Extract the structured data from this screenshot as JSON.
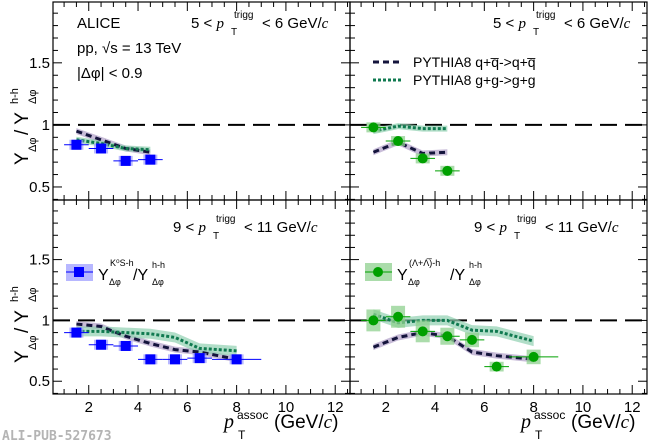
{
  "watermark": "ALI-PUB-527673",
  "colors": {
    "k0": "#0000ff",
    "k0_band": "#9999ff",
    "lambda": "#00a000",
    "lambda_band": "#8fd08f",
    "qq_line": "#14143c",
    "qq_band": "#b0a0c8",
    "gg_line": "#107a50",
    "gg_band": "#90d0b0"
  },
  "chart_data": [
    {
      "type": "scatter",
      "panel": "top-left",
      "title": "",
      "annotations": [
        "ALICE",
        "pp, √s = 13 TeV",
        "|Δφ| < 0.9"
      ],
      "trigger_label": {
        "pre": "5 < ",
        "p": "p",
        "sup": "trigg",
        "sub": "T",
        "post": " < 6 GeV/",
        "c": "c"
      },
      "ylabel": {
        "main": "Y",
        "sub1": "Δφ",
        "slash": " / Y",
        "sup2": "h-h",
        "sub2": "Δφ"
      },
      "xlim": [
        0.55,
        12.6
      ],
      "ylim": [
        0.395,
        2.0
      ],
      "yticks": [
        0.5,
        1,
        1.5
      ],
      "ytick_labels": [
        "0.5",
        "1",
        "1.5"
      ],
      "reference_line": 1,
      "series": [
        {
          "name": "K0S-h / h-h",
          "marker": "square",
          "color": "#0000ff",
          "x": [
            1.5,
            2.5,
            3.5,
            4.5
          ],
          "y": [
            0.84,
            0.81,
            0.71,
            0.72
          ],
          "xerr": [
            0.5,
            0.5,
            0.5,
            0.5
          ]
        },
        {
          "name": "PYTHIA8 q+qbar->q+qbar",
          "style": "dashed",
          "x": [
            1.5,
            2.5,
            3.5,
            4.5
          ],
          "y": [
            0.95,
            0.88,
            0.81,
            0.78
          ]
        },
        {
          "name": "PYTHIA8 g+g->g+g",
          "style": "dotted",
          "x": [
            1.5,
            2.5,
            3.5,
            4.5
          ],
          "y": [
            0.88,
            0.85,
            0.81,
            0.8
          ]
        }
      ]
    },
    {
      "type": "scatter",
      "panel": "top-right",
      "trigger_label": {
        "pre": "5 < ",
        "p": "p",
        "sup": "trigg",
        "sub": "T",
        "post": " < 6 GeV/",
        "c": "c"
      },
      "legend": [
        {
          "label": "PYTHIA8 q+q̅->q+q̅",
          "style": "dashed"
        },
        {
          "label": "PYTHIA8 g+g->g+g",
          "style": "dotted"
        }
      ],
      "xlim": [
        0.55,
        12.6
      ],
      "ylim": [
        0.395,
        2.0
      ],
      "reference_line": 1,
      "series": [
        {
          "name": "(Lambda+AntiLambda)-h / h-h",
          "marker": "circle",
          "color": "#00a000",
          "x": [
            1.5,
            2.5,
            3.5,
            4.5
          ],
          "y": [
            0.98,
            0.87,
            0.73,
            0.63
          ],
          "xerr": [
            0.5,
            0.5,
            0.5,
            0.5
          ]
        },
        {
          "name": "PYTHIA8 q+qbar->q+qbar",
          "style": "dashed",
          "x": [
            1.5,
            2.5,
            3.5,
            4.5
          ],
          "y": [
            0.78,
            0.86,
            0.77,
            0.78
          ]
        },
        {
          "name": "PYTHIA8 g+g->g+g",
          "style": "dotted",
          "x": [
            1.5,
            2.5,
            3.5,
            4.5
          ],
          "y": [
            0.95,
            0.99,
            0.97,
            0.97
          ]
        }
      ]
    },
    {
      "type": "scatter",
      "panel": "bottom-left",
      "trigger_label": {
        "pre": "9 < ",
        "p": "p",
        "sup": "trigg",
        "sub": "T",
        "post": " < 11 GeV/",
        "c": "c"
      },
      "legend": [
        {
          "label_main": "Y",
          "label_sup": "K⁰S-h",
          "label_sub": "Δφ",
          "label_mid": "/Y",
          "label_sup2": "h-h",
          "label_sub2": "Δφ",
          "marker": "square"
        }
      ],
      "ylabel": {
        "main": "Y",
        "sub1": "Δφ",
        "slash": " / Y",
        "sup2": "h-h",
        "sub2": "Δφ"
      },
      "xlabel": {
        "p": "p",
        "sup": "assoc",
        "sub": "T",
        "unit": " (GeV/",
        "c": "c",
        "close": ")"
      },
      "xlim": [
        0.55,
        12.6
      ],
      "ylim": [
        0.4,
        2.0
      ],
      "xticks": [
        2,
        4,
        6,
        8,
        10,
        12
      ],
      "xtick_labels": [
        "2",
        "4",
        "6",
        "8",
        "10",
        "12"
      ],
      "yticks": [
        0.5,
        1,
        1.5
      ],
      "ytick_labels": [
        "0.5",
        "1",
        "1.5"
      ],
      "reference_line": 1,
      "series": [
        {
          "name": "K0S-h / h-h",
          "marker": "square",
          "color": "#0000ff",
          "x": [
            1.5,
            2.5,
            3.5,
            4.5,
            5.5,
            6.5,
            8.0
          ],
          "y": [
            0.9,
            0.8,
            0.79,
            0.68,
            0.68,
            0.69,
            0.68
          ],
          "xerr": [
            0.5,
            0.5,
            0.5,
            0.5,
            0.5,
            0.5,
            1.0
          ]
        },
        {
          "name": "PYTHIA8 q+qbar->q+qbar",
          "style": "dashed",
          "x": [
            1.5,
            2.5,
            3.5,
            4.5,
            5.5,
            6.5,
            8.0
          ],
          "y": [
            0.97,
            0.95,
            0.87,
            0.81,
            0.76,
            0.74,
            0.68
          ]
        },
        {
          "name": "PYTHIA8 g+g->g+g",
          "style": "dotted",
          "x": [
            1.5,
            2.5,
            3.5,
            4.5,
            5.5,
            6.5,
            8.0
          ],
          "y": [
            0.91,
            0.91,
            0.9,
            0.89,
            0.86,
            0.77,
            0.75
          ]
        }
      ]
    },
    {
      "type": "scatter",
      "panel": "bottom-right",
      "trigger_label": {
        "pre": "9 < ",
        "p": "p",
        "sup": "trigg",
        "sub": "T",
        "post": " < 11 GeV/",
        "c": "c"
      },
      "legend": [
        {
          "label_main": "Y",
          "label_sup": "(Λ+Λ̅)-h",
          "label_sub": "Δφ",
          "label_mid": "/Y",
          "label_sup2": "h-h",
          "label_sub2": "Δφ",
          "marker": "circle"
        }
      ],
      "xlabel": {
        "p": "p",
        "sup": "assoc",
        "sub": "T",
        "unit": " (GeV/",
        "c": "c",
        "close": ")"
      },
      "xlim": [
        0.55,
        12.6
      ],
      "ylim": [
        0.4,
        2.0
      ],
      "xticks": [
        2,
        4,
        6,
        8,
        10,
        12
      ],
      "xtick_labels": [
        "2",
        "4",
        "6",
        "8",
        "10",
        "12"
      ],
      "reference_line": 1,
      "series": [
        {
          "name": "(Lambda+AntiLambda)-h / h-h",
          "marker": "circle",
          "color": "#00a000",
          "x": [
            1.5,
            2.5,
            3.5,
            4.5,
            5.5,
            6.5,
            8.0
          ],
          "y": [
            1.0,
            1.03,
            0.91,
            0.87,
            0.84,
            0.62,
            0.7
          ],
          "xerr": [
            0.5,
            0.5,
            0.5,
            0.5,
            0.5,
            0.5,
            1.0
          ],
          "syst": [
            0.09,
            0.09,
            0.09,
            0.07,
            0.06,
            0.04,
            0.06
          ]
        },
        {
          "name": "PYTHIA8 q+qbar->q+qbar",
          "style": "dashed",
          "x": [
            1.5,
            2.5,
            3.5,
            4.5,
            5.5,
            6.5,
            8.0
          ],
          "y": [
            0.78,
            0.86,
            0.9,
            0.87,
            0.74,
            0.71,
            0.68
          ]
        },
        {
          "name": "PYTHIA8 g+g->g+g",
          "style": "dotted",
          "x": [
            1.5,
            2.5,
            3.5,
            4.5,
            5.5,
            6.5,
            8.0
          ],
          "y": [
            1.05,
            0.98,
            1.0,
            1.0,
            0.92,
            0.91,
            0.83
          ]
        }
      ]
    }
  ]
}
